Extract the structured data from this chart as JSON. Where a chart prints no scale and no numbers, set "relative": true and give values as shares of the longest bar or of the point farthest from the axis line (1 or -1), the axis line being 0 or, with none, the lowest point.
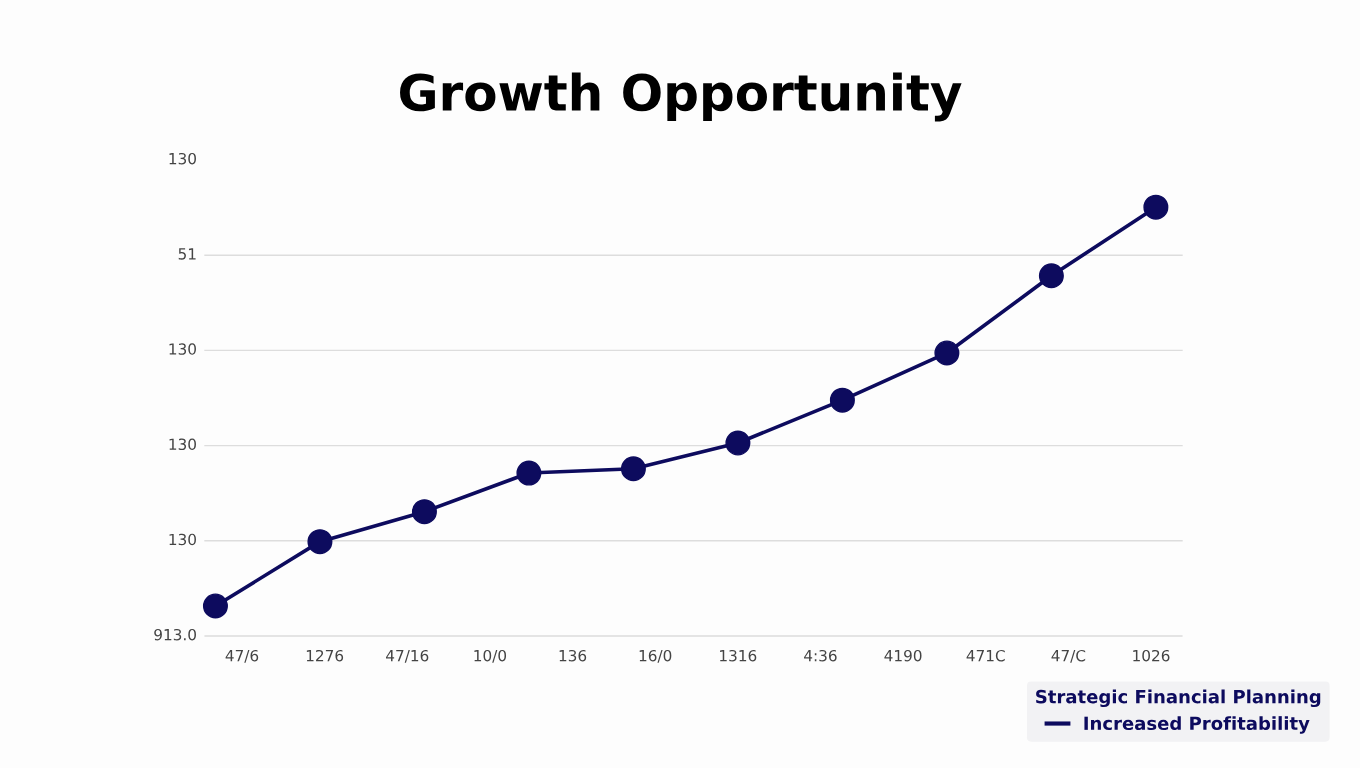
{
  "chart_data": {
    "type": "line",
    "title": "Growth Opportunity",
    "relative": true,
    "categories": [
      null,
      null,
      null,
      null,
      null,
      null,
      null,
      null,
      null,
      null
    ],
    "series": [
      {
        "name": "Increased Profitability",
        "color": "#0d0b5e",
        "values": [
          0.07,
          0.22,
          0.29,
          0.38,
          0.39,
          0.45,
          0.55,
          0.66,
          0.84,
          1
        ]
      }
    ],
    "legend_title": "Strategic Financial Planning",
    "annotations": [
      "913.0",
      "130",
      "130",
      "130",
      "51",
      "130",
      "47/6",
      "1276",
      "47/16",
      "10/0",
      "136",
      "16/0",
      "1316",
      "4:36",
      "4190",
      "471C",
      "47/C",
      "1026"
    ],
    "grid": "y",
    "legend": "bottom right",
    "marker": "circle",
    "line_style": "solid"
  }
}
